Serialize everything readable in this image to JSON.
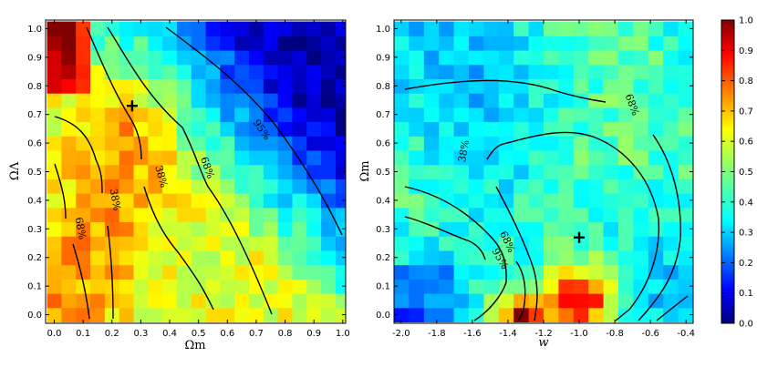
{
  "chart_data": [
    {
      "type": "heatmap",
      "panel": "left",
      "xlabel": "Ωm",
      "ylabel": "ΩΛ",
      "xlim": [
        -0.03,
        1.01
      ],
      "ylim": [
        -0.03,
        1.03
      ],
      "xticks": [
        "0.0",
        "0.1",
        "0.2",
        "0.3",
        "0.4",
        "0.5",
        "0.6",
        "0.7",
        "0.8",
        "0.9",
        "1.0"
      ],
      "yticks": [
        "0.0",
        "0.1",
        "0.2",
        "0.3",
        "0.4",
        "0.5",
        "0.6",
        "0.7",
        "0.8",
        "0.9",
        "1.0"
      ],
      "marker": {
        "symbol": "+",
        "x": 0.27,
        "y": 0.73
      },
      "contour_labels": [
        {
          "text": "95%",
          "x": 0.71,
          "y": 0.64
        },
        {
          "text": "68%",
          "x": 0.52,
          "y": 0.51
        },
        {
          "text": "38%",
          "x": 0.36,
          "y": 0.48
        },
        {
          "text": "38%",
          "x": 0.2,
          "y": 0.4
        },
        {
          "text": "68%",
          "x": 0.08,
          "y": 0.3
        }
      ]
    },
    {
      "type": "heatmap",
      "panel": "right",
      "xlabel": "w",
      "ylabel": "Ωm",
      "xlim": [
        -2.04,
        -0.36
      ],
      "ylim": [
        -0.03,
        1.03
      ],
      "xticks": [
        "-2.0",
        "-1.8",
        "-1.6",
        "-1.4",
        "-1.2",
        "-1.0",
        "-0.8",
        "-0.6",
        "-0.4"
      ],
      "yticks": [
        "0.0",
        "0.1",
        "0.2",
        "0.3",
        "0.4",
        "0.5",
        "0.6",
        "0.7",
        "0.8",
        "0.9",
        "1.0"
      ],
      "marker": {
        "symbol": "+",
        "x": -1.0,
        "y": 0.27
      },
      "contour_labels": [
        {
          "text": "68%",
          "x": -0.72,
          "y": 0.73
        },
        {
          "text": "38%",
          "x": -1.63,
          "y": 0.57
        },
        {
          "text": "68%",
          "x": -1.42,
          "y": 0.25
        },
        {
          "text": "95%",
          "x": -1.46,
          "y": 0.19
        }
      ]
    },
    {
      "type": "colorbar",
      "ticks": [
        "0.0",
        "0.1",
        "0.2",
        "0.3",
        "0.4",
        "0.5",
        "0.6",
        "0.7",
        "0.8",
        "0.9",
        "1.0"
      ],
      "range": [
        0.0,
        1.0
      ],
      "colormap": "jet"
    }
  ]
}
